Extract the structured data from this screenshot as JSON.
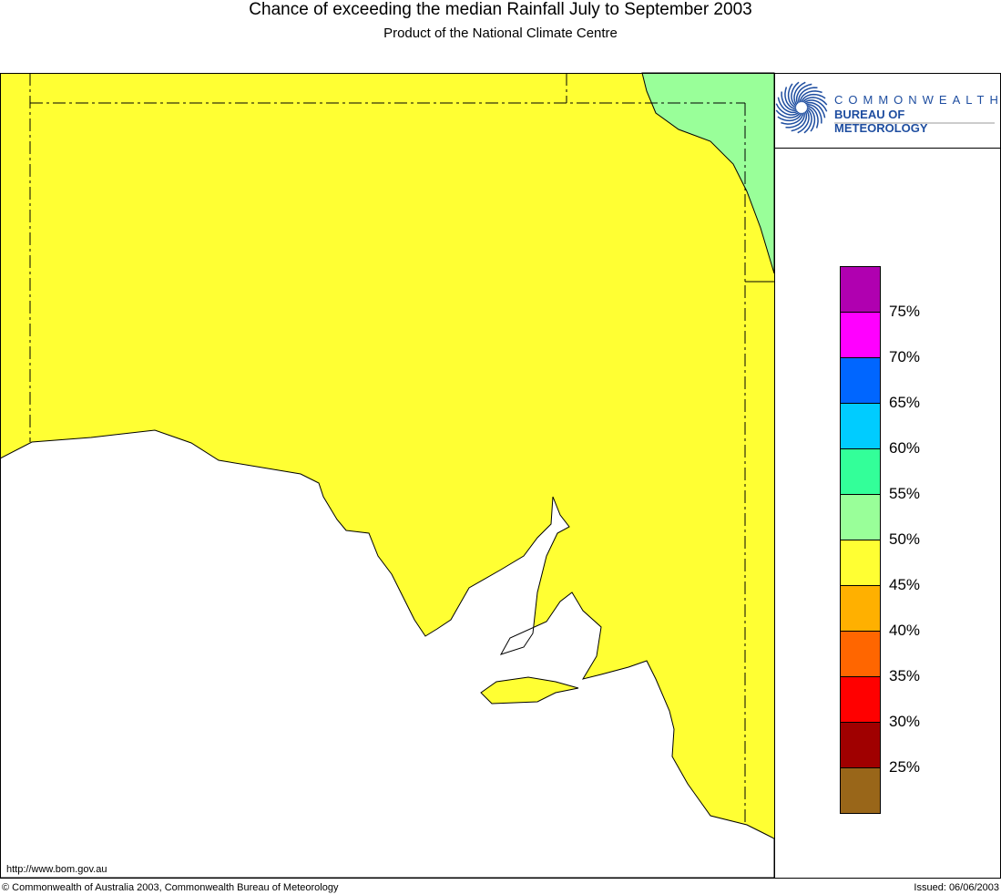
{
  "title": "Chance of exceeding the median Rainfall July to September 2003",
  "subtitle": "Product of the National Climate Centre",
  "logo": {
    "line1": "COMMONWEALTH",
    "line2": "BUREAU OF METEOROLOGY"
  },
  "url": "http://www.bom.gov.au",
  "copyright": "© Commonwealth of Australia 2003, Commonwealth Bureau of Meteorology",
  "issued": "Issued: 06/06/2003",
  "legend": {
    "colors": [
      "#b000b0",
      "#ff00ff",
      "#0066ff",
      "#00ccff",
      "#33ff99",
      "#99ff99",
      "#ffff33",
      "#ffb000",
      "#ff6600",
      "#ff0000",
      "#a00000",
      "#996619"
    ],
    "labels": [
      "75%",
      "70%",
      "65%",
      "60%",
      "55%",
      "50%",
      "45%",
      "40%",
      "35%",
      "30%",
      "25%"
    ]
  },
  "map": {
    "land_color": "#ffff33",
    "region_color": "#99ff99",
    "region_category": "50-55%",
    "land_category": "45-50%"
  }
}
